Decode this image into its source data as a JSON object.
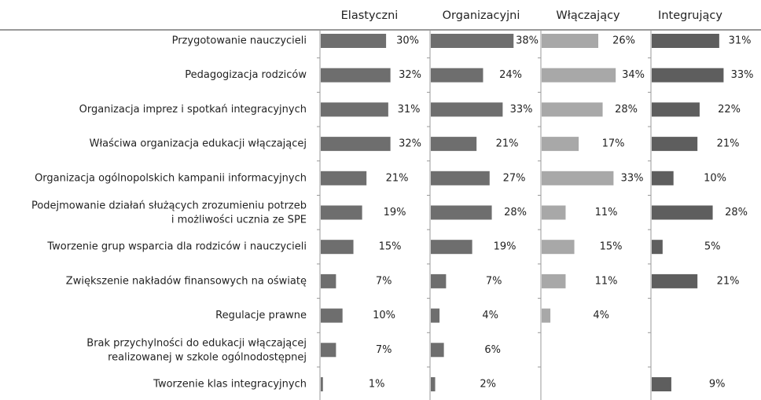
{
  "chart_data": {
    "type": "bar",
    "categories": [
      "Przygotowanie nauczycieli",
      "Pedagogizacja rodziców",
      "Organizacja imprez i spotkań integracyjnych",
      "Właściwa organizacja edukacji włączającej",
      "Organizacja ogólnopolskich kampanii informacyjnych",
      "Podejmowanie działań służących zrozumieniu potrzeb\n i możliwości ucznia ze SPE",
      "Tworzenie grup wsparcia dla rodziców i nauczycieli",
      "Zwiększenie nakładów finansowych na oświatę",
      "Regulacje prawne",
      "Brak przychylności do edukacji włączającej\nrealizowanej w szkole ogólnodostępnej",
      "Tworzenie klas integracyjnych"
    ],
    "series": [
      {
        "name": "Elastyczni",
        "color": "#6e6e6e",
        "values": [
          30,
          32,
          31,
          32,
          21,
          19,
          15,
          7,
          10,
          7,
          1
        ],
        "value_labels": [
          "30%",
          "32%",
          "31%",
          "32%",
          "21%",
          "19%",
          "15%",
          "7%",
          "10%",
          "7%",
          "1%"
        ]
      },
      {
        "name": "Organizacyjni",
        "color": "#6e6e6e",
        "values": [
          38,
          24,
          33,
          21,
          27,
          28,
          19,
          7,
          4,
          6,
          2
        ],
        "value_labels": [
          "38%",
          "24%",
          "33%",
          "21%",
          "27%",
          "28%",
          "19%",
          "7%",
          "4%",
          "6%",
          "2%"
        ]
      },
      {
        "name": "Włączający",
        "color": "#a8a8a8",
        "values": [
          26,
          34,
          28,
          17,
          33,
          11,
          15,
          11,
          4,
          null,
          null
        ],
        "value_labels": [
          "26%",
          "34%",
          "28%",
          "17%",
          "33%",
          "11%",
          "15%",
          "11%",
          "4%",
          null,
          null
        ]
      },
      {
        "name": "Integrujący",
        "color": "#5e5e5e",
        "values": [
          31,
          33,
          22,
          21,
          10,
          28,
          5,
          21,
          null,
          null,
          9
        ],
        "value_labels": [
          "31%",
          "33%",
          "22%",
          "21%",
          "10%",
          "28%",
          "5%",
          "21%",
          null,
          null,
          "9%"
        ]
      }
    ]
  }
}
